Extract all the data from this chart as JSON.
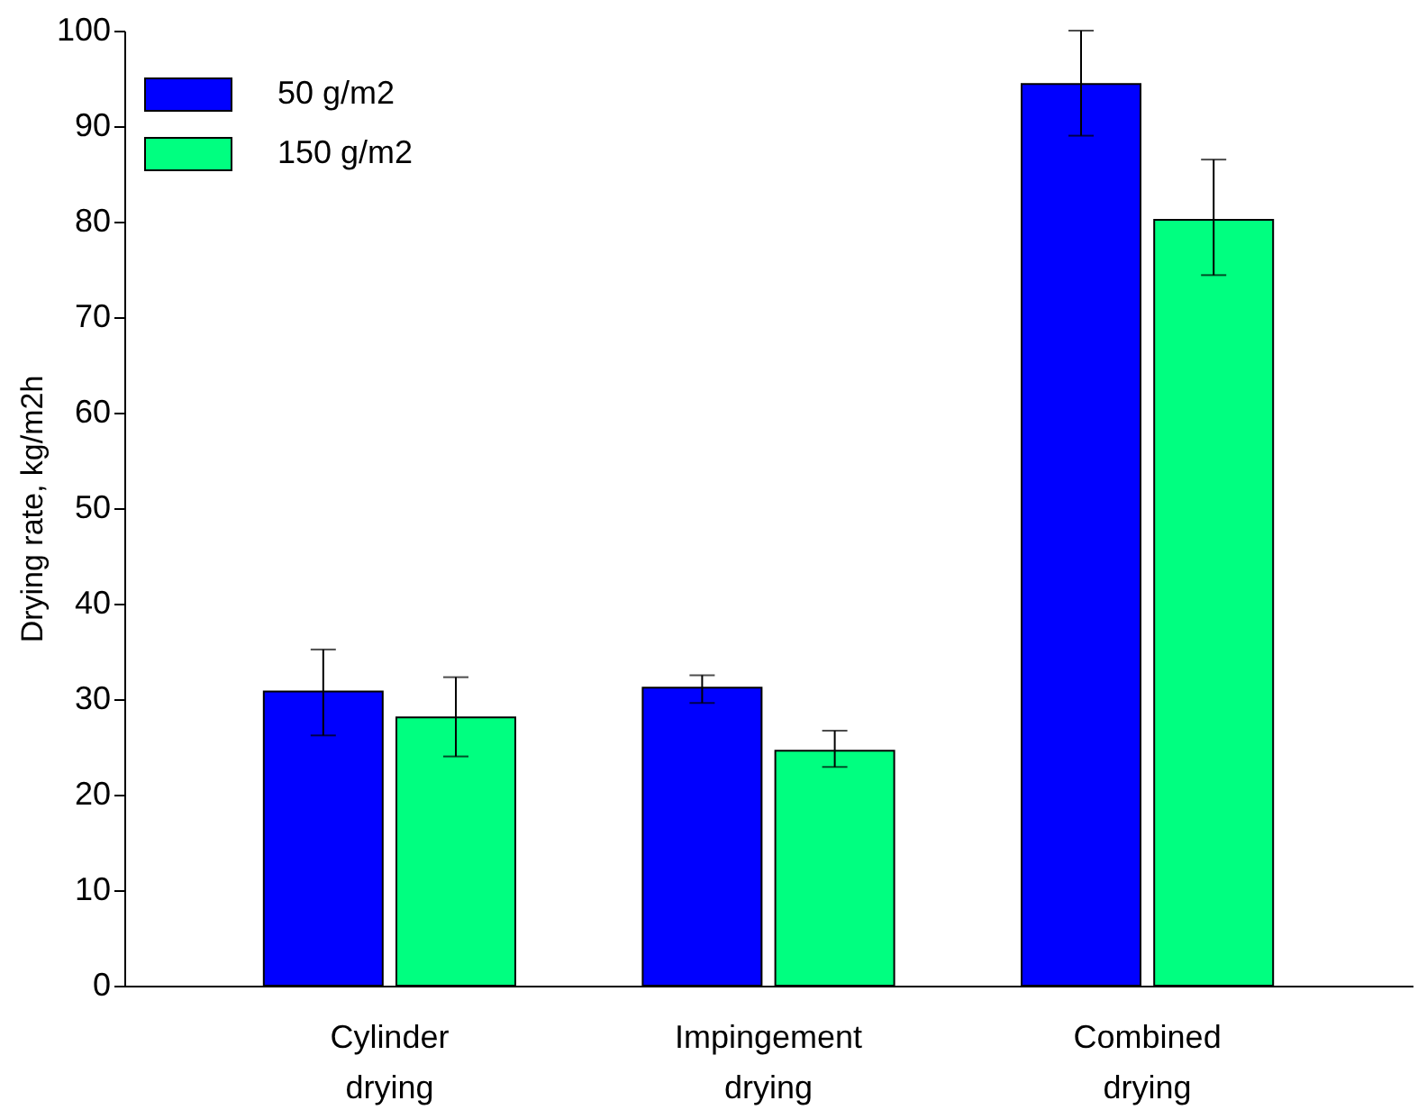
{
  "chart_data": {
    "type": "bar",
    "ylabel": "Drying rate, kg/m2h",
    "categories": [
      "Cylinder drying",
      "Impingement drying",
      "Combined drying"
    ],
    "series": [
      {
        "name": "50 g/m2",
        "color": "#0000ff",
        "values": [
          30.8,
          31.2,
          94.4
        ],
        "errors": [
          [
            26.2,
            35.2
          ],
          [
            29.6,
            32.5
          ],
          [
            89.0,
            100.0
          ]
        ]
      },
      {
        "name": "150 g/m2",
        "color": "#00ff80",
        "values": [
          28.1,
          24.6,
          80.2
        ],
        "errors": [
          [
            24.0,
            32.3
          ],
          [
            22.9,
            26.7
          ],
          [
            74.4,
            86.5
          ]
        ]
      }
    ],
    "ylim": [
      0,
      100
    ],
    "yticks": [
      0,
      10,
      20,
      30,
      40,
      50,
      60,
      70,
      80,
      90,
      100
    ],
    "grid": false,
    "legend": "top left"
  }
}
